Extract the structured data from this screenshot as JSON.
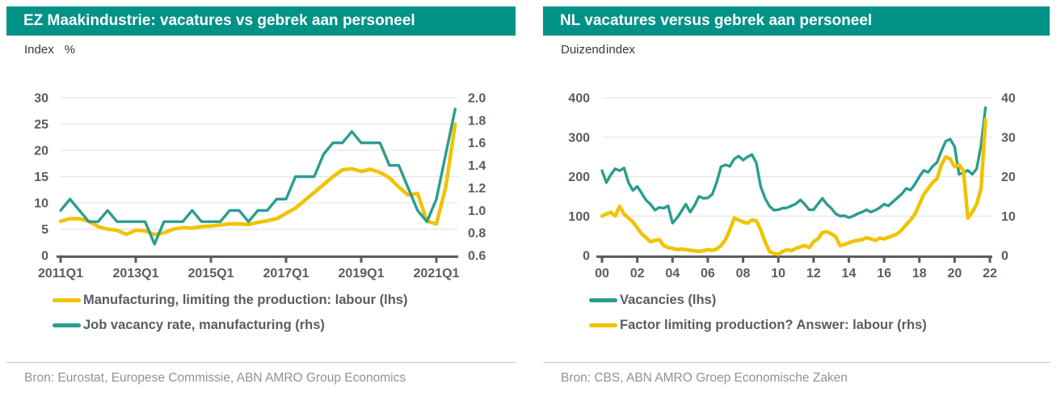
{
  "colors": {
    "header_bg": "#009286",
    "teal_line": "#2a9d8f",
    "yellow_line": "#f0c300",
    "axis_text": "#575e63",
    "source_text": "#8f9396",
    "gridline": "#e1e1e1"
  },
  "panels": [
    {
      "title": "EZ Maakindustrie: vacatures vs gebrek aan personeel",
      "unit_left": "Index",
      "unit_right": "%",
      "legend": [
        {
          "color": "#f0c300",
          "label": "Manufacturing, limiting the production: labour (lhs)"
        },
        {
          "color": "#2a9d8f",
          "label": "Job vacancy rate, manufacturing (rhs)"
        }
      ],
      "source": "Bron: Eurostat, Europese Commissie, ABN AMRO Group Economics"
    },
    {
      "title": "NL vacatures versus gebrek aan personeel",
      "unit_left": "Duizend",
      "unit_right": "index",
      "legend": [
        {
          "color": "#2a9d8f",
          "label": "Vacancies (lhs)"
        },
        {
          "color": "#f0c300",
          "label": "Factor limiting production? Answer: labour (rhs)"
        }
      ],
      "source": "Bron: CBS, ABN AMRO Groep Economische Zaken"
    }
  ],
  "chart_data": [
    {
      "type": "line",
      "title": "EZ Maakindustrie: vacatures vs gebrek aan personeel",
      "x_frequency": "quarterly",
      "x_start": "2011Q1",
      "x_end": "2021Q3",
      "x_tick_labels": [
        "2011Q1",
        "2013Q1",
        "2015Q1",
        "2017Q1",
        "2019Q1",
        "2021Q1"
      ],
      "left_axis": {
        "label": "Index",
        "min": 0,
        "max": 30,
        "tick_labels": [
          "0",
          "5",
          "10",
          "15",
          "20",
          "25",
          "30"
        ]
      },
      "right_axis": {
        "label": "%",
        "min": 0.6,
        "max": 2.0,
        "tick_labels": [
          "0.6",
          "0.8",
          "1.0",
          "1.2",
          "1.4",
          "1.6",
          "1.8",
          "2.0"
        ]
      },
      "grid": "horizontal",
      "legend_position": "bottom",
      "series": [
        {
          "name": "Manufacturing, limiting the production: labour (lhs)",
          "axis": "left",
          "color": "#f0c300",
          "values": [
            6.5,
            7.0,
            7.0,
            6.5,
            5.5,
            5.0,
            4.8,
            4.0,
            4.8,
            4.7,
            4.0,
            4.3,
            5.0,
            5.3,
            5.2,
            5.5,
            5.6,
            5.8,
            6.0,
            6.0,
            5.9,
            6.3,
            6.6,
            7.0,
            8.0,
            9.0,
            10.5,
            12.0,
            13.5,
            15.0,
            16.3,
            16.5,
            16.0,
            16.4,
            15.8,
            14.8,
            13.0,
            11.5,
            11.8,
            6.5,
            6.0,
            13.0,
            25.0
          ]
        },
        {
          "name": "Job vacancy rate, manufacturing (rhs)",
          "axis": "right",
          "color": "#2a9d8f",
          "values": [
            1.0,
            1.1,
            1.0,
            0.9,
            0.9,
            1.0,
            0.9,
            0.9,
            0.9,
            0.9,
            0.7,
            0.9,
            0.9,
            0.9,
            1.0,
            0.9,
            0.9,
            0.9,
            1.0,
            1.0,
            0.9,
            1.0,
            1.0,
            1.1,
            1.1,
            1.3,
            1.3,
            1.3,
            1.5,
            1.6,
            1.6,
            1.7,
            1.6,
            1.6,
            1.6,
            1.4,
            1.4,
            1.2,
            1.0,
            0.9,
            1.1,
            1.5,
            1.9
          ]
        }
      ]
    },
    {
      "type": "line",
      "title": "NL vacatures versus gebrek aan personeel",
      "x_frequency": "quarterly",
      "x_start": "2000Q1",
      "x_end": "2021Q4",
      "x_tick_labels": [
        "00",
        "02",
        "04",
        "06",
        "08",
        "10",
        "12",
        "14",
        "16",
        "18",
        "20",
        "22"
      ],
      "left_axis": {
        "label": "Duizend",
        "min": 0,
        "max": 400,
        "tick_labels": [
          "0",
          "100",
          "200",
          "300",
          "400"
        ]
      },
      "right_axis": {
        "label": "index",
        "min": 0,
        "max": 40,
        "tick_labels": [
          "0",
          "10",
          "20",
          "30",
          "40"
        ]
      },
      "grid": "horizontal",
      "legend_position": "bottom",
      "series": [
        {
          "name": "Vacancies (lhs)",
          "axis": "left",
          "color": "#2a9d8f",
          "values": [
            215,
            185,
            205,
            220,
            215,
            222,
            185,
            165,
            175,
            158,
            140,
            130,
            115,
            122,
            120,
            126,
            82,
            95,
            112,
            130,
            110,
            127,
            150,
            145,
            146,
            155,
            185,
            225,
            230,
            226,
            245,
            252,
            242,
            250,
            256,
            235,
            175,
            145,
            125,
            115,
            116,
            120,
            121,
            126,
            131,
            141,
            130,
            116,
            116,
            131,
            145,
            130,
            120,
            106,
            100,
            101,
            96,
            100,
            106,
            110,
            116,
            110,
            115,
            121,
            130,
            126,
            136,
            146,
            156,
            170,
            166,
            181,
            200,
            216,
            211,
            226,
            236,
            265,
            290,
            295,
            276,
            206,
            210,
            216,
            206,
            220,
            280,
            375
          ]
        },
        {
          "name": "Factor limiting production? Answer: labour (rhs)",
          "axis": "right",
          "color": "#f0c300",
          "values": [
            10,
            10.5,
            11,
            10,
            12.5,
            10.5,
            9.5,
            8.5,
            7,
            5.5,
            4.5,
            3.5,
            3.8,
            4,
            2.5,
            2,
            1.8,
            1.5,
            1.6,
            1.5,
            1.3,
            1.2,
            1.0,
            1.2,
            1.5,
            1.3,
            1.6,
            2.5,
            4,
            6.5,
            9.5,
            9,
            8.5,
            8.2,
            9,
            8.8,
            6.5,
            3.5,
            1,
            0.5,
            0.3,
            1,
            1.5,
            1.2,
            1.8,
            2.2,
            2.5,
            2,
            3.5,
            4.2,
            5.8,
            6,
            5.5,
            4.8,
            2.5,
            2.8,
            3.2,
            3.6,
            3.8,
            4,
            4.5,
            4.2,
            3.8,
            4.4,
            4.2,
            4.6,
            5,
            5.5,
            6.5,
            7.8,
            9,
            10.5,
            13,
            15.5,
            17,
            18.5,
            19.5,
            23,
            25,
            24.5,
            22.5,
            23,
            21.5,
            9.5,
            11,
            13,
            17,
            34.5
          ]
        }
      ]
    }
  ]
}
